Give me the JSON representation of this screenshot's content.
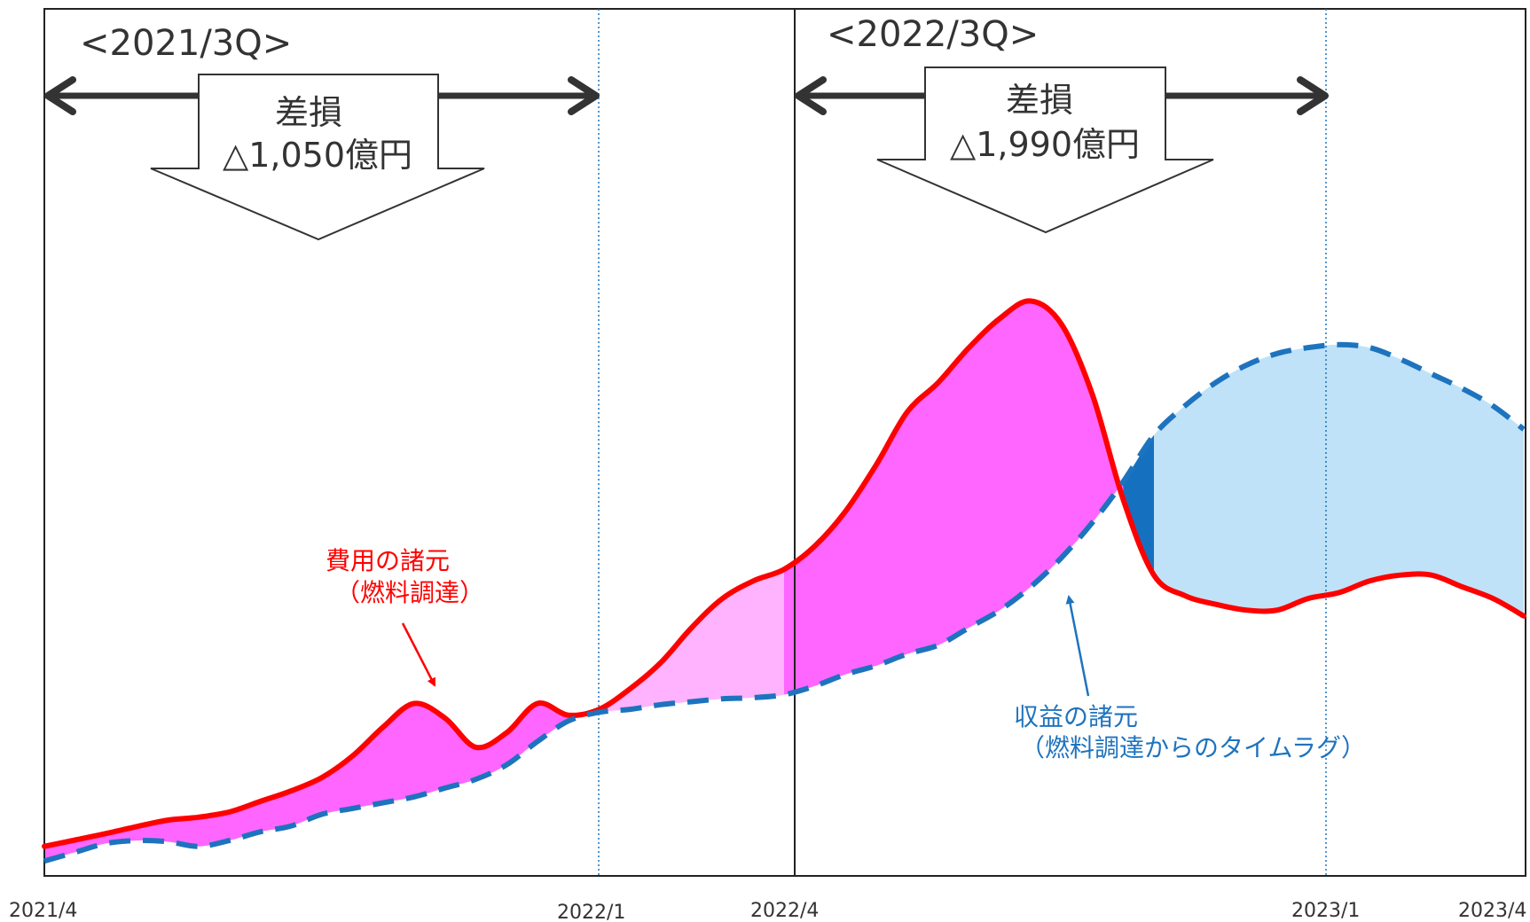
{
  "chart_data": {
    "type": "area",
    "x_ticks": [
      "2021/4",
      "2022/1",
      "2022/4",
      "2023/1",
      "2023/4"
    ],
    "periods": [
      {
        "label": "<2021/3Q>",
        "box_line1": "差損",
        "box_line2": "△1,050億円"
      },
      {
        "label": "<2022/3Q>",
        "box_line1": "差損",
        "box_line2": "△1,990億円"
      }
    ],
    "annotations": {
      "cost": {
        "line1": "費用の諸元",
        "line2": "（燃料調達）"
      },
      "revenue": {
        "line1": "収益の諸元",
        "line2": "（燃料調達からのタイムラグ）"
      }
    },
    "series": [
      {
        "name": "費用の諸元",
        "style": "solid",
        "color": "#ff0000",
        "x": [
          0,
          0.5,
          1,
          1.5,
          2,
          2.5,
          3,
          3.5,
          4,
          4.5,
          5,
          5.5,
          6,
          6.5,
          7,
          7.5,
          8,
          8.5,
          9,
          9.5,
          10,
          10.5,
          11,
          11.5,
          12,
          12.5,
          13,
          13.5,
          14,
          14.5,
          15,
          15.5,
          16,
          16.5,
          17,
          17.5,
          18,
          18.5,
          19,
          19.5,
          20,
          20.5,
          21,
          21.5,
          22,
          22.5,
          23,
          23.5,
          24
        ],
        "y": [
          0.5,
          1.6,
          2.7,
          3.9,
          5.0,
          5.5,
          6.4,
          8.2,
          10.0,
          12.3,
          16.0,
          21.0,
          25.0,
          22.5,
          17.5,
          20.0,
          25.0,
          23.0,
          24.0,
          27.5,
          32.0,
          38.0,
          43.0,
          46.0,
          48.0,
          52.0,
          58.0,
          66.0,
          75.0,
          80.0,
          86.0,
          91.0,
          94.0,
          90.0,
          78.0,
          60.0,
          47.0,
          43.5,
          42.0,
          41.0,
          41.0,
          43.0,
          44.0,
          46.0,
          47.0,
          47.0,
          45.0,
          43.0,
          40.0
        ]
      },
      {
        "name": "収益の諸元",
        "style": "dashed",
        "color": "#1e73be",
        "x": [
          0,
          0.5,
          1,
          1.5,
          2,
          2.5,
          3,
          3.5,
          4,
          4.5,
          5,
          5.5,
          6,
          6.5,
          7,
          7.5,
          8,
          8.5,
          9,
          9.5,
          10,
          10.5,
          11,
          11.5,
          12,
          12.5,
          13,
          13.5,
          14,
          14.5,
          15,
          15.5,
          16,
          16.5,
          17,
          17.5,
          18,
          18.5,
          19,
          19.5,
          20,
          20.5,
          21,
          21.5,
          22,
          22.5,
          23,
          23.5,
          24
        ],
        "y": [
          -2.0,
          -0.5,
          1.0,
          1.5,
          1.3,
          0.5,
          1.5,
          3.0,
          4.0,
          6.0,
          7.0,
          8.0,
          9.0,
          10.5,
          12.0,
          14.5,
          18.5,
          22.0,
          23.5,
          24.0,
          24.8,
          25.3,
          25.8,
          26.0,
          26.5,
          28.0,
          30.0,
          31.5,
          33.5,
          35.0,
          38.0,
          41.0,
          45.0,
          50.0,
          56.0,
          63.0,
          71.0,
          76.0,
          80.0,
          83.0,
          85.0,
          86.0,
          86.5,
          86.0,
          84.0,
          81.5,
          79.0,
          76.0,
          72.0
        ]
      }
    ],
    "fill_colors": {
      "loss_in_period": "#ff66ff",
      "loss_outside_period": "#ffb3ff",
      "gain_in_period": "#1670c0",
      "gain_outside_period": "#bfe2f8"
    },
    "grid": false
  }
}
